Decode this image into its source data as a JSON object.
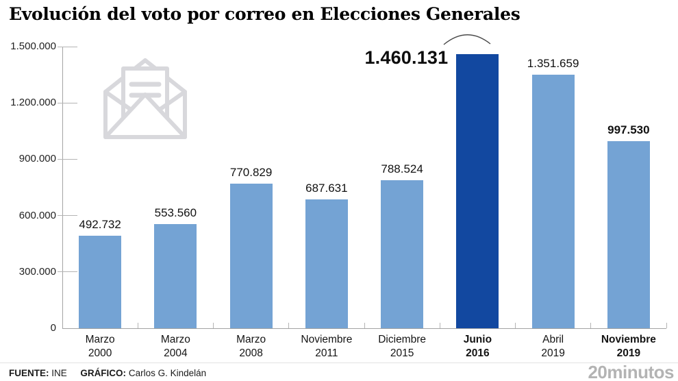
{
  "title": "Evolución del voto por correo en Elecciones Generales",
  "chart_data": {
    "type": "bar",
    "title": "Evolución del voto por correo en Elecciones Generales",
    "categories": [
      "Marzo 2000",
      "Marzo 2004",
      "Marzo 2008",
      "Noviembre 2011",
      "Diciembre 2015",
      "Junio 2016",
      "Abril 2019",
      "Noviembre 2019"
    ],
    "values": [
      492732,
      553560,
      770829,
      687631,
      788524,
      1460131,
      1351659,
      997530
    ],
    "value_labels": [
      "492.732",
      "553.560",
      "770.829",
      "687.631",
      "788.524",
      "1.460.131",
      "1.351.659",
      "997.530"
    ],
    "highlight_index": 5,
    "bold_value_indices": [
      5,
      7
    ],
    "bold_category_indices": [
      5,
      7
    ],
    "ylim": [
      0,
      1500000
    ],
    "y_ticks": [
      0,
      300000,
      600000,
      900000,
      1200000,
      1500000
    ],
    "y_tick_labels": [
      "0",
      "300.000",
      "600.000",
      "900.000",
      "1.200.000",
      "1.500.000"
    ],
    "xlabel": "",
    "ylabel": "",
    "grid": false,
    "legend": null,
    "bar_color": "#74a3d4",
    "highlight_color": "#1248a0"
  },
  "icons": {
    "envelope": "open-envelope-with-letter-icon",
    "arc": "label-to-bar-arc-annotation"
  },
  "colors": {
    "bar": "#74a3d4",
    "bar_highlight": "#1248a0",
    "axis": "#a3a3a3",
    "tick": "#b4b4b4",
    "envelope": "#d8d8dc",
    "brand_gray": "#b3b3b3"
  },
  "footer": {
    "source_label": "FUENTE:",
    "source_value": "INE",
    "credit_label": "GRÁFICO:",
    "credit_value": "Carlos G. Kindelán",
    "brand": "20minutos"
  }
}
